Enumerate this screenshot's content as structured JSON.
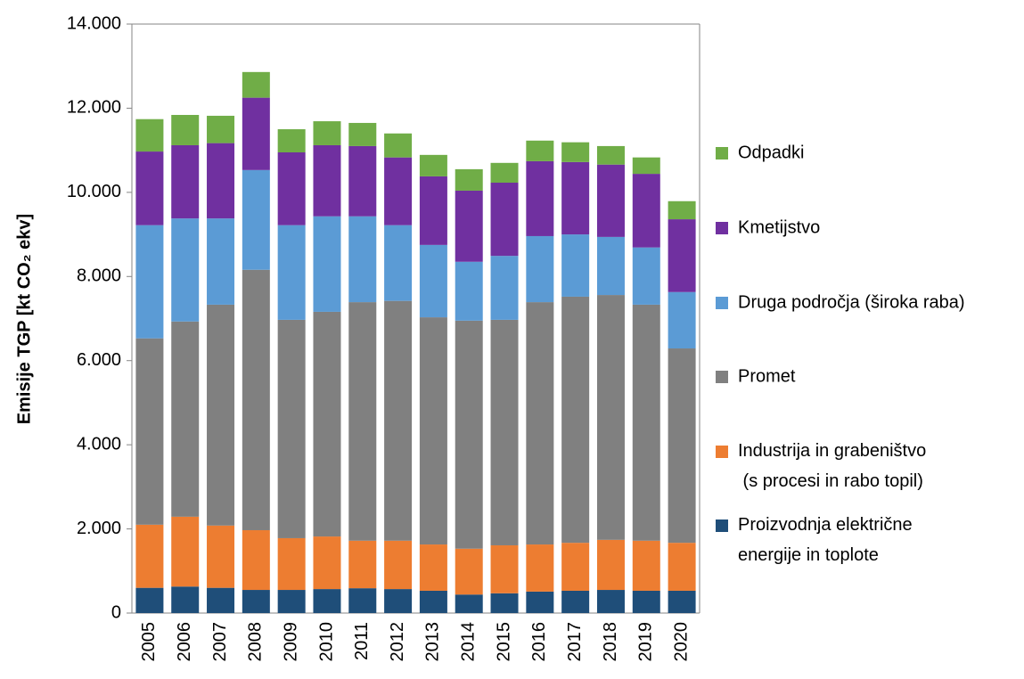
{
  "chart_data": {
    "type": "bar",
    "stacked": true,
    "ylabel": "Emisije TGP [kt CO₂ ekv]",
    "categories": [
      "2005",
      "2006",
      "2007",
      "2008",
      "2009",
      "2010",
      "2011",
      "2012",
      "2013",
      "2014",
      "2015",
      "2016",
      "2017",
      "2018",
      "2019",
      "2020"
    ],
    "series": [
      {
        "name": "Proizvodnja električne\nenergije in toplote",
        "color": "#1f4e79",
        "values": [
          600,
          630,
          600,
          550,
          550,
          570,
          590,
          570,
          530,
          440,
          470,
          510,
          530,
          550,
          530,
          530
        ]
      },
      {
        "name": "Industrija in grabeništvo\n (s procesi in rabo topil)",
        "color": "#ed7d31",
        "values": [
          1500,
          1660,
          1480,
          1420,
          1230,
          1250,
          1130,
          1150,
          1100,
          1090,
          1140,
          1120,
          1140,
          1190,
          1190,
          1140
        ]
      },
      {
        "name": "Promet",
        "color": "#808080",
        "values": [
          4430,
          4640,
          5250,
          6190,
          5190,
          5340,
          5670,
          5700,
          5400,
          5420,
          5360,
          5760,
          5850,
          5820,
          5610,
          4620
        ]
      },
      {
        "name": "Druga področja (široka raba)",
        "color": "#5b9bd5",
        "values": [
          2690,
          2450,
          2050,
          2370,
          2250,
          2270,
          2040,
          1800,
          1720,
          1400,
          1520,
          1570,
          1480,
          1380,
          1360,
          1340
        ]
      },
      {
        "name": "Kmetijstvo",
        "color": "#7030a0",
        "values": [
          1750,
          1740,
          1790,
          1720,
          1730,
          1690,
          1670,
          1610,
          1630,
          1690,
          1740,
          1780,
          1720,
          1720,
          1750,
          1730
        ]
      },
      {
        "name": "Odpadki",
        "color": "#70ad47",
        "values": [
          770,
          720,
          650,
          610,
          550,
          570,
          550,
          570,
          510,
          510,
          470,
          490,
          470,
          440,
          390,
          430
        ]
      }
    ],
    "ylim": [
      0,
      14000
    ],
    "yticks": [
      0,
      {
        "value": 2000,
        "label": "2.000"
      },
      {
        "value": 4000,
        "label": "4.000"
      },
      {
        "value": 6000,
        "label": "6.000"
      },
      {
        "value": 8000,
        "label": "8.000"
      },
      {
        "value": 10000,
        "label": "10.000"
      },
      {
        "value": 12000,
        "label": "12.000"
      },
      {
        "value": 14000,
        "label": "14.000"
      }
    ],
    "grid": false,
    "legend": "right"
  }
}
